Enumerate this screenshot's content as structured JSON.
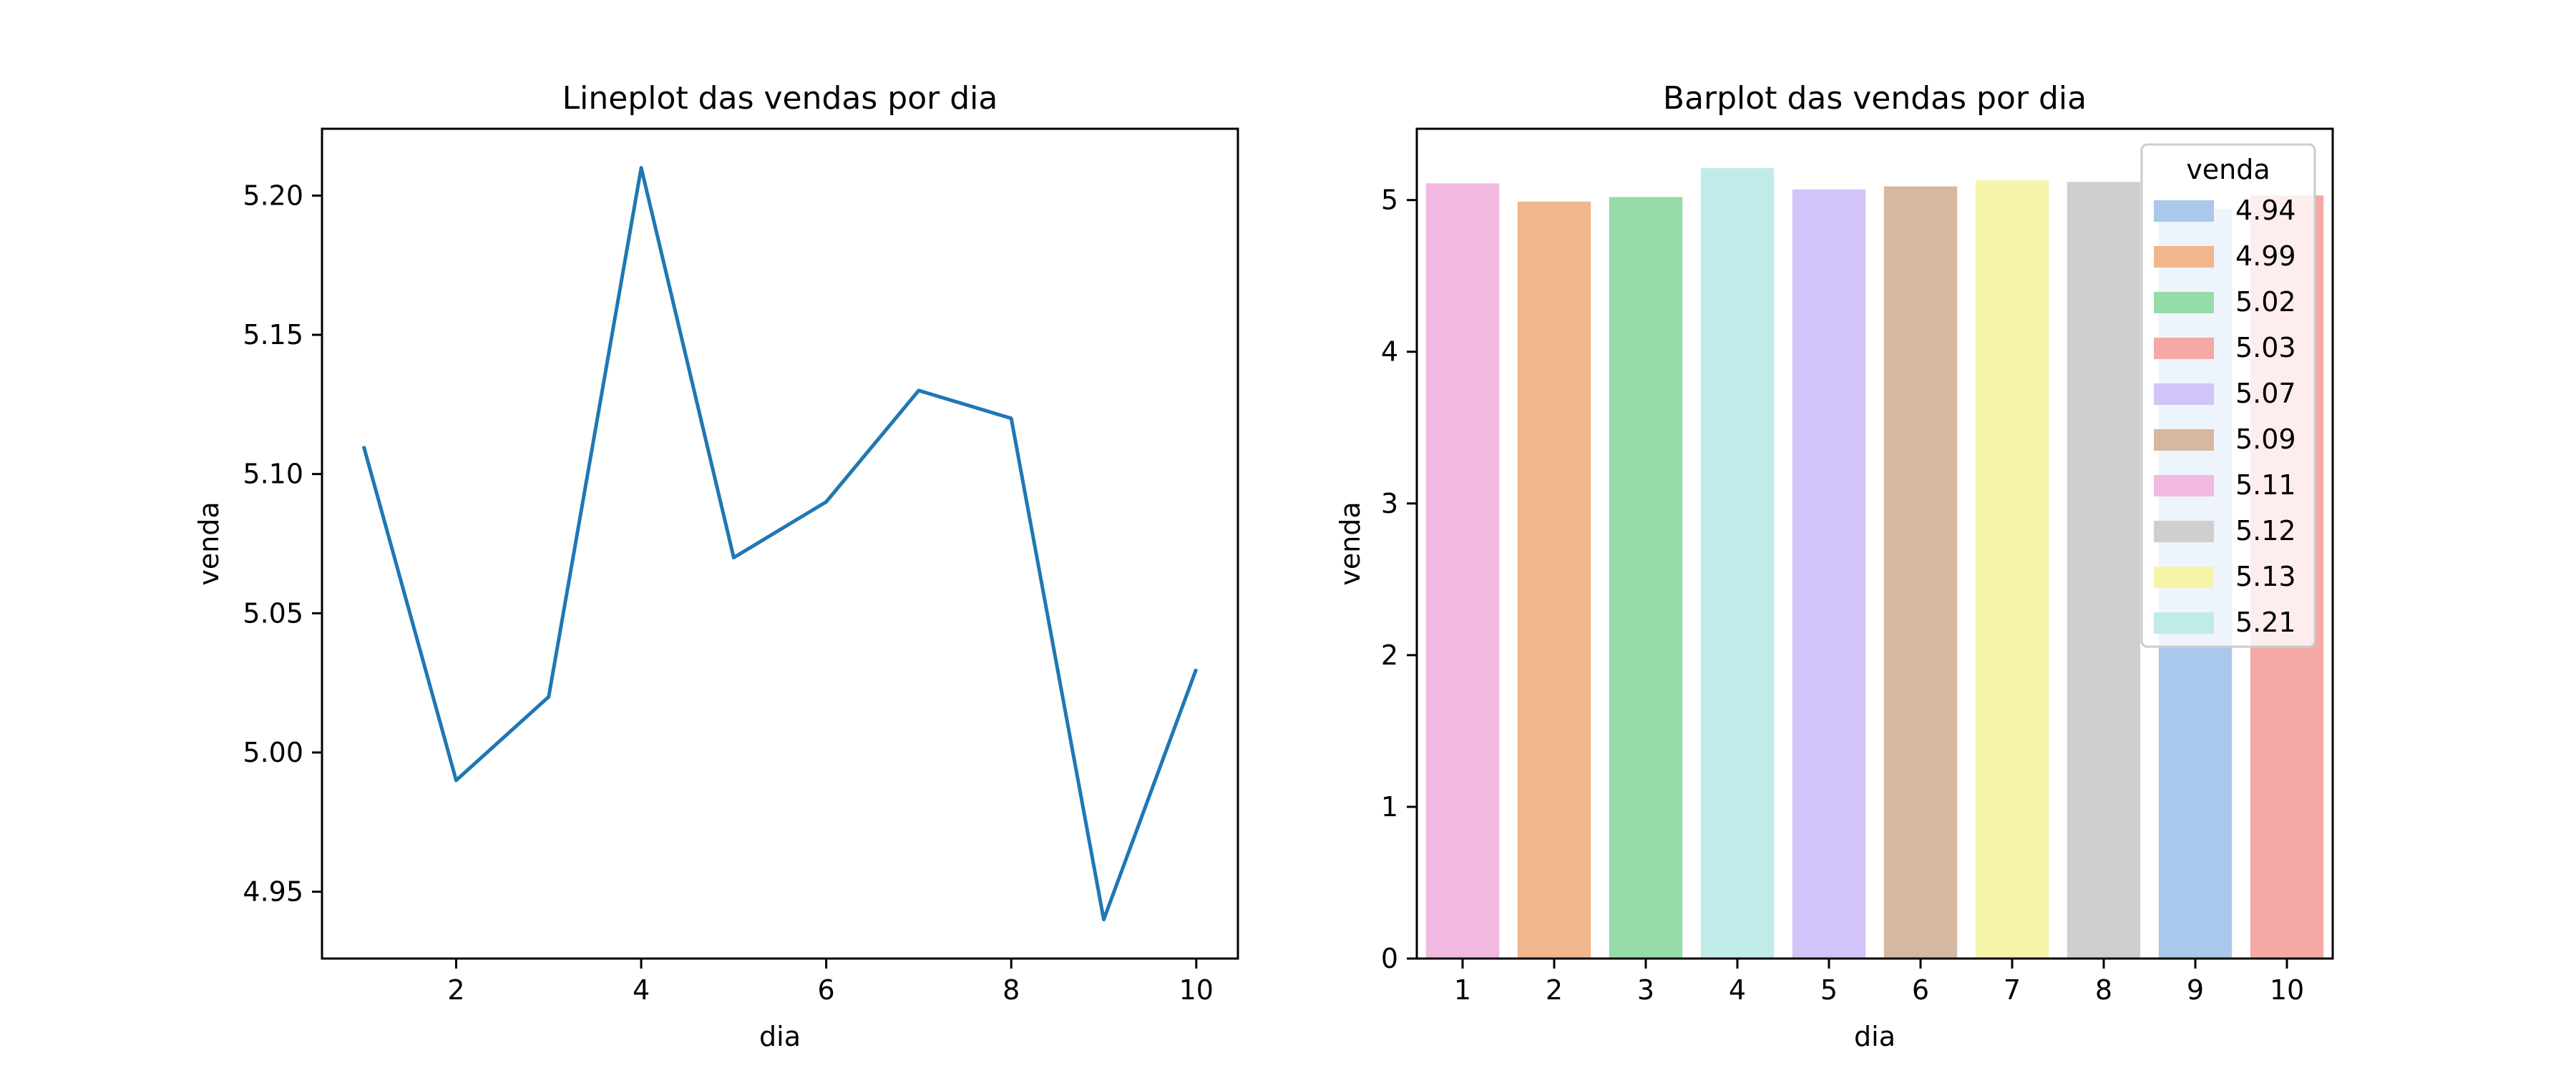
{
  "chart_data": [
    {
      "type": "line",
      "title": "Lineplot das vendas por dia",
      "xlabel": "dia",
      "ylabel": "venda",
      "x": [
        1,
        2,
        3,
        4,
        5,
        6,
        7,
        8,
        9,
        10
      ],
      "series": [
        {
          "values": [
            5.11,
            4.99,
            5.02,
            5.21,
            5.07,
            5.09,
            5.13,
            5.12,
            4.94,
            5.03
          ],
          "color": "#1f77b4"
        }
      ],
      "xticks": [
        "2",
        "4",
        "6",
        "8",
        "10"
      ],
      "yticks": [
        "4.95",
        "5.00",
        "5.05",
        "5.10",
        "5.15",
        "5.20"
      ],
      "xlim": [
        0.55,
        10.45
      ],
      "ylim": [
        4.926,
        5.224
      ],
      "grid": false
    },
    {
      "type": "bar",
      "title": "Barplot das vendas por dia",
      "xlabel": "dia",
      "ylabel": "venda",
      "categories": [
        "1",
        "2",
        "3",
        "4",
        "5",
        "6",
        "7",
        "8",
        "9",
        "10"
      ],
      "values": [
        5.11,
        4.99,
        5.02,
        5.21,
        5.07,
        5.09,
        5.13,
        5.12,
        4.94,
        5.03
      ],
      "bar_colors": [
        "#f1b8e0",
        "#f0b68c",
        "#96dca8",
        "#bfebe8",
        "#d2c4f8",
        "#d6b8a0",
        "#f6f4a8",
        "#cfcfcf",
        "#aac8ec",
        "#f4a9a5"
      ],
      "yticks": [
        "0",
        "1",
        "2",
        "3",
        "4",
        "5"
      ],
      "ylim": [
        0,
        5.47
      ],
      "grid": false,
      "legend": {
        "title": "venda",
        "placement": "top-right",
        "entries": [
          {
            "label": "4.94",
            "color": "#aac8ec"
          },
          {
            "label": "4.99",
            "color": "#f0b68c"
          },
          {
            "label": "5.02",
            "color": "#96dca8"
          },
          {
            "label": "5.03",
            "color": "#f4a9a5"
          },
          {
            "label": "5.07",
            "color": "#d2c4f8"
          },
          {
            "label": "5.09",
            "color": "#d6b8a0"
          },
          {
            "label": "5.11",
            "color": "#f1b8e0"
          },
          {
            "label": "5.12",
            "color": "#cfcfcf"
          },
          {
            "label": "5.13",
            "color": "#f6f4a8"
          },
          {
            "label": "5.21",
            "color": "#bfebe8"
          }
        ]
      }
    }
  ]
}
